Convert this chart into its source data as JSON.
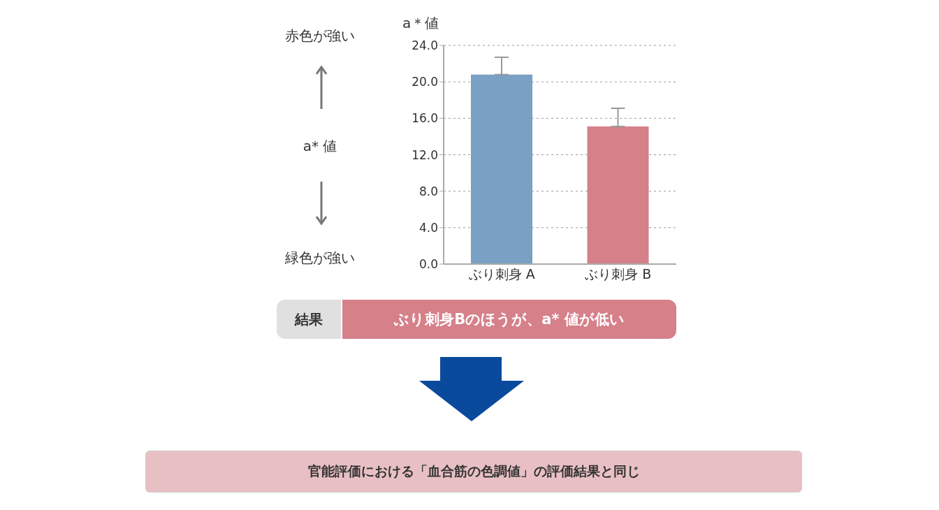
{
  "chart_data": {
    "type": "bar",
    "ylabel": "a＊値",
    "categories": [
      "ぶり刺身 A",
      "ぶり刺身 B"
    ],
    "values": [
      20.8,
      15.1
    ],
    "colors": [
      "#7aa0c4",
      "#d6808a"
    ],
    "errors": [
      [
        20.8,
        22.7
      ],
      [
        15.1,
        17.1
      ]
    ],
    "ylim": [
      0,
      24
    ],
    "yticks": [
      {
        "value": 0,
        "label": "0.0"
      },
      {
        "value": 4,
        "label": "4.0"
      },
      {
        "value": 8,
        "label": "8.0"
      },
      {
        "value": 12,
        "label": "12.0"
      },
      {
        "value": 16,
        "label": "16.0"
      },
      {
        "value": 20,
        "label": "20.0"
      },
      {
        "value": 24,
        "label": "24.0"
      }
    ],
    "grid": "y",
    "annotations": [
      "赤色が強い",
      "a* 値",
      "緑色が強い",
      "結果",
      "ぶり刺身Bのほうが、a* 値が低い",
      "官能評価における「血合筋の色調値」の評価結果と同じ"
    ]
  }
}
